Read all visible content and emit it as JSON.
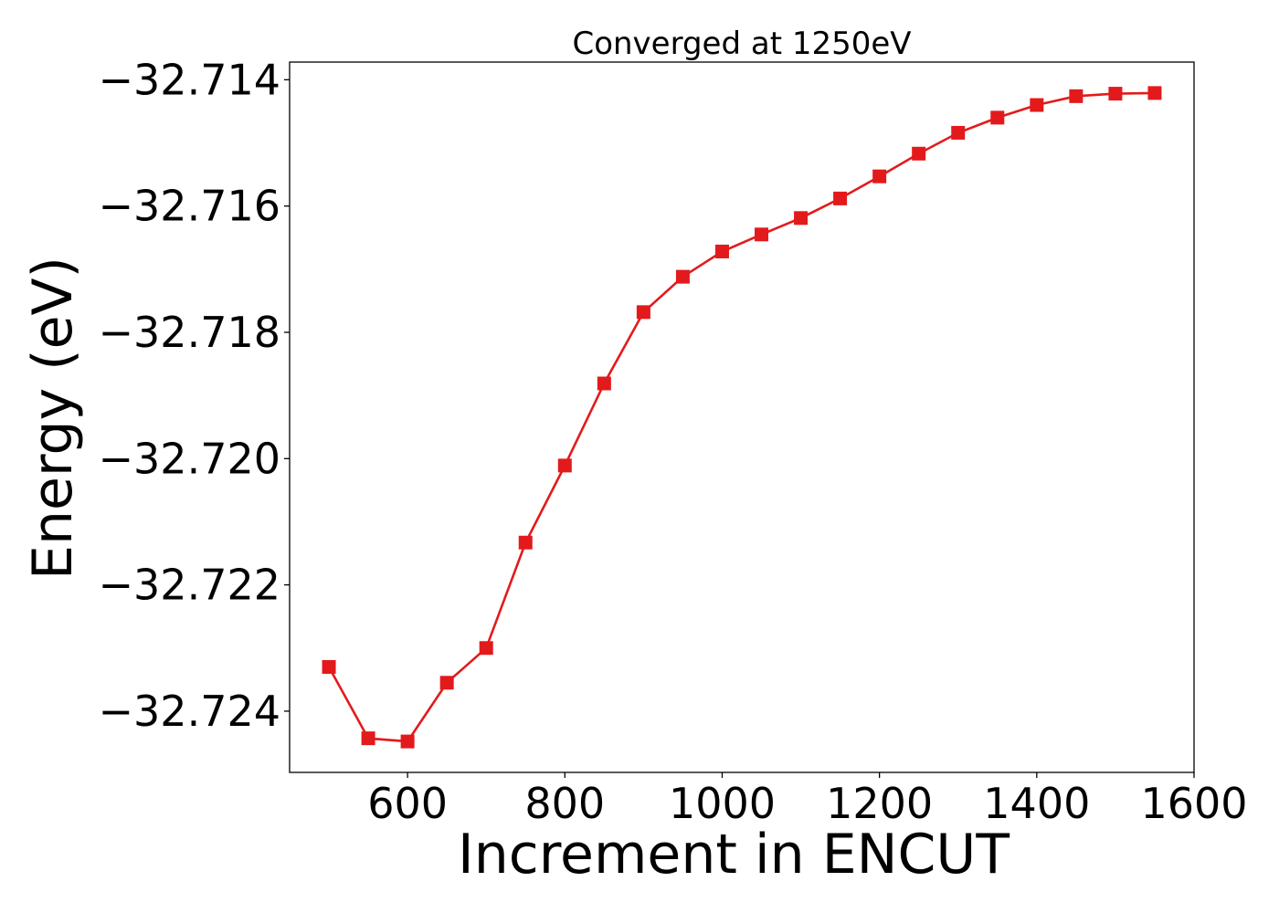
{
  "chart_data": {
    "type": "line",
    "title": "Converged at 1250eV",
    "xlabel": "Increment in ENCUT",
    "ylabel": "Energy (eV)",
    "xlim": [
      450,
      1600
    ],
    "ylim": [
      -32.72497,
      -32.71372
    ],
    "x_ticks": [
      600,
      800,
      1000,
      1200,
      1400,
      1600
    ],
    "x_tick_labels": [
      "600",
      "800",
      "1000",
      "1200",
      "1400",
      "1600"
    ],
    "y_ticks": [
      -32.714,
      -32.716,
      -32.718,
      -32.72,
      -32.722,
      -32.724
    ],
    "y_tick_labels": [
      "−32.714",
      "−32.716",
      "−32.718",
      "−32.720",
      "−32.722",
      "−32.724"
    ],
    "grid": false,
    "series": [
      {
        "color": "#e31a1c",
        "marker": "square",
        "x": [
          500,
          550,
          600,
          650,
          700,
          750,
          800,
          850,
          900,
          950,
          1000,
          1050,
          1100,
          1150,
          1200,
          1250,
          1300,
          1350,
          1400,
          1450,
          1500,
          1550
        ],
        "y": [
          -32.7233,
          -32.72443,
          -32.72448,
          -32.72355,
          -32.723,
          -32.72133,
          -32.72011,
          -32.71881,
          -32.71768,
          -32.71712,
          -32.71672,
          -32.71645,
          -32.71619,
          -32.71588,
          -32.71553,
          -32.71517,
          -32.71484,
          -32.7146,
          -32.7144,
          -32.71426,
          -32.71422,
          -32.71421
        ]
      }
    ]
  }
}
